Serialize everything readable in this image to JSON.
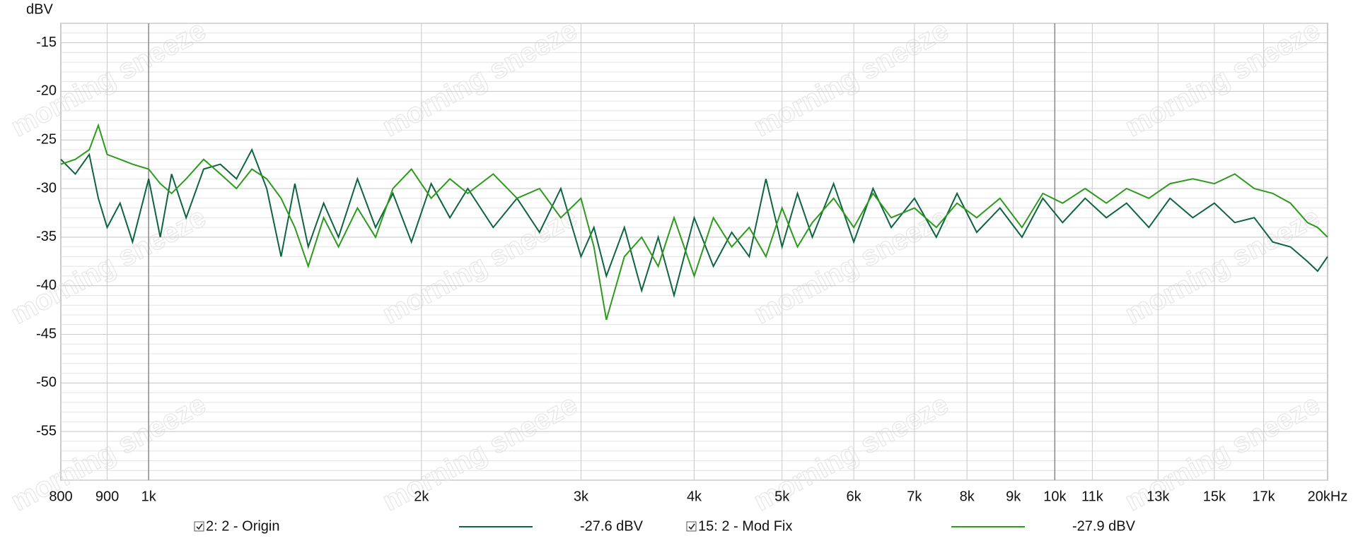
{
  "chart_data": {
    "type": "line",
    "y_label": "dBV",
    "watermark": "morning sneeze",
    "xscale": "log",
    "grid": true,
    "y_minor_step": 1,
    "x": [
      800,
      830,
      860,
      880,
      900,
      930,
      960,
      1000,
      1030,
      1060,
      1100,
      1150,
      1200,
      1250,
      1300,
      1350,
      1400,
      1450,
      1500,
      1560,
      1620,
      1700,
      1780,
      1860,
      1950,
      2050,
      2150,
      2250,
      2400,
      2550,
      2700,
      2850,
      3000,
      3100,
      3200,
      3350,
      3500,
      3650,
      3800,
      4000,
      4200,
      4400,
      4600,
      4800,
      5000,
      5200,
      5400,
      5700,
      6000,
      6300,
      6600,
      7000,
      7400,
      7800,
      8200,
      8700,
      9200,
      9700,
      10200,
      10800,
      11400,
      12000,
      12700,
      13400,
      14200,
      15000,
      15800,
      16600,
      17400,
      18200,
      19000,
      19500,
      20000
    ],
    "series": [
      {
        "name": "2: 2 - Origin",
        "color": "#0d6440",
        "level_label": "-27.6 dBV",
        "values": [
          -27,
          -28.5,
          -26.5,
          -31,
          -34,
          -31.5,
          -35.5,
          -29,
          -35,
          -28.5,
          -33,
          -28,
          -27.5,
          -29,
          -26,
          -30,
          -37,
          -29.5,
          -36,
          -31.5,
          -35,
          -29,
          -34,
          -30.5,
          -35.5,
          -29.5,
          -33,
          -30,
          -34,
          -31,
          -34.5,
          -30,
          -37,
          -34,
          -39,
          -34,
          -40.5,
          -35,
          -41,
          -33,
          -38,
          -34.5,
          -37,
          -29,
          -36,
          -30.5,
          -35,
          -29.5,
          -35.5,
          -30,
          -34,
          -31,
          -35,
          -30.5,
          -34.5,
          -32,
          -35,
          -31,
          -33.5,
          -31,
          -33,
          -31.5,
          -34,
          -31,
          -33,
          -31.5,
          -33.5,
          -33,
          -35.5,
          -36,
          -37.5,
          -38.5,
          -37
        ]
      },
      {
        "name": "15: 2 - Mod Fix",
        "color": "#2c9a1c",
        "level_label": "-27.9 dBV",
        "values": [
          -27.5,
          -27,
          -26,
          -23.5,
          -26.5,
          -27,
          -27.5,
          -28,
          -29.5,
          -30.5,
          -29,
          -27,
          -28.5,
          -30,
          -28,
          -29,
          -31,
          -34,
          -38,
          -33,
          -36,
          -32,
          -35,
          -30,
          -28,
          -31,
          -29,
          -30.5,
          -28.5,
          -31,
          -30,
          -33,
          -31,
          -36,
          -43.5,
          -37,
          -35,
          -38,
          -33,
          -39,
          -33,
          -36,
          -34,
          -37,
          -32,
          -36,
          -33.5,
          -31,
          -34,
          -30.5,
          -33,
          -32,
          -34,
          -31.5,
          -33,
          -31,
          -34,
          -30.5,
          -31.5,
          -30,
          -31.5,
          -30,
          -31,
          -29.5,
          -29,
          -29.5,
          -28.5,
          -30,
          -30.5,
          -31.5,
          -33.5,
          -34,
          -35
        ]
      }
    ],
    "xlim": [
      800,
      20000
    ],
    "xticks": [
      {
        "value": 800,
        "label": "800"
      },
      {
        "value": 900,
        "label": "900"
      },
      {
        "value": 1000,
        "label": "1k"
      },
      {
        "value": 2000,
        "label": "2k"
      },
      {
        "value": 3000,
        "label": "3k"
      },
      {
        "value": 4000,
        "label": "4k"
      },
      {
        "value": 5000,
        "label": "5k"
      },
      {
        "value": 6000,
        "label": "6k"
      },
      {
        "value": 7000,
        "label": "7k"
      },
      {
        "value": 8000,
        "label": "8k"
      },
      {
        "value": 9000,
        "label": "9k"
      },
      {
        "value": 10000,
        "label": "10k"
      },
      {
        "value": 11000,
        "label": "11k"
      },
      {
        "value": 13000,
        "label": "13k"
      },
      {
        "value": 15000,
        "label": "15k"
      },
      {
        "value": 17000,
        "label": "17k"
      },
      {
        "value": 20000,
        "label": "20kHz"
      }
    ],
    "ylim": [
      -60,
      -13
    ],
    "yticks": [
      -15,
      -20,
      -25,
      -30,
      -35,
      -40,
      -45,
      -50,
      -55
    ]
  }
}
